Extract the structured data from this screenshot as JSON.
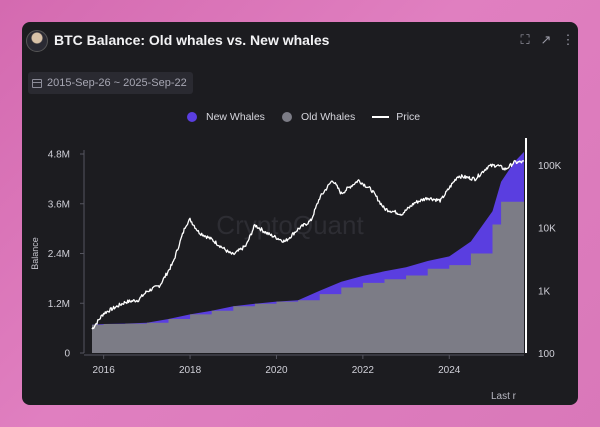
{
  "header": {
    "title": "BTC Balance: Old whales vs. New whales",
    "icons": [
      "fullscreen-icon",
      "external-link-icon",
      "more-vert-icon"
    ]
  },
  "date_range": "2015-Sep-26 ~ 2025-Sep-22",
  "watermark": "CryptoQuant",
  "footer_text": "Last r",
  "colors": {
    "new_whales": "#5a3ee0",
    "old_whales": "#7c7c86",
    "price": "#ffffff",
    "background": "#1c1c20"
  },
  "chart_data": {
    "type": "area",
    "title": "BTC Balance: Old whales vs. New whales",
    "ylabel": "Balance",
    "ylim": [
      0,
      4800000
    ],
    "y_ticks": [
      "0",
      "1.2M",
      "2.4M",
      "3.6M",
      "4.8M"
    ],
    "y2_scale": "log",
    "y2lim": [
      100,
      150000
    ],
    "y2_ticks": [
      "100",
      "1K",
      "10K",
      "100K"
    ],
    "x_ticks": [
      "2016",
      "2018",
      "2020",
      "2022",
      "2024"
    ],
    "xlim": [
      2015.73,
      2025.73
    ],
    "legend_position": "top-center",
    "grid": false,
    "series": [
      {
        "name": "Old Whales",
        "type": "area",
        "x": [
          2015.73,
          2016.0,
          2016.5,
          2017.0,
          2017.5,
          2018.0,
          2018.5,
          2019.0,
          2019.5,
          2020.0,
          2020.5,
          2021.0,
          2021.5,
          2022.0,
          2022.5,
          2023.0,
          2023.5,
          2024.0,
          2024.5,
          2025.0,
          2025.2,
          2025.5,
          2025.73
        ],
        "values": [
          680000,
          700000,
          710000,
          730000,
          820000,
          930000,
          1020000,
          1130000,
          1190000,
          1240000,
          1270000,
          1420000,
          1580000,
          1690000,
          1780000,
          1870000,
          2030000,
          2120000,
          2400000,
          3100000,
          3650000,
          3650000,
          3650000
        ]
      },
      {
        "name": "New Whales",
        "type": "stacked-area",
        "x": [
          2015.73,
          2016.0,
          2016.5,
          2017.0,
          2017.5,
          2018.0,
          2018.5,
          2019.0,
          2019.5,
          2020.0,
          2020.5,
          2021.0,
          2021.5,
          2022.0,
          2022.5,
          2023.0,
          2023.5,
          2024.0,
          2024.5,
          2025.0,
          2025.2,
          2025.5,
          2025.73
        ],
        "values": [
          0,
          0,
          0,
          0,
          0,
          0,
          0,
          0,
          0,
          0,
          0,
          80000,
          140000,
          170000,
          190000,
          200000,
          190000,
          210000,
          290000,
          320000,
          480000,
          950000,
          1200000
        ]
      },
      {
        "name": "Price",
        "type": "line",
        "axis": "right",
        "x": [
          2015.73,
          2016.0,
          2016.5,
          2016.8,
          2017.0,
          2017.3,
          2017.6,
          2017.9,
          2018.0,
          2018.2,
          2018.5,
          2018.9,
          2019.0,
          2019.3,
          2019.5,
          2019.8,
          2020.2,
          2020.5,
          2020.8,
          2021.0,
          2021.3,
          2021.5,
          2021.7,
          2021.9,
          2022.2,
          2022.5,
          2022.9,
          2023.2,
          2023.5,
          2023.8,
          2024.0,
          2024.2,
          2024.6,
          2024.9,
          2025.1,
          2025.3,
          2025.5,
          2025.73
        ],
        "values": [
          240,
          430,
          650,
          700,
          960,
          1200,
          2700,
          11000,
          13500,
          8500,
          6500,
          4000,
          3700,
          5200,
          11000,
          8000,
          6000,
          9500,
          13000,
          30000,
          58000,
          35000,
          45000,
          57000,
          40000,
          20000,
          16500,
          25000,
          30000,
          27000,
          43000,
          67000,
          60000,
          95000,
          100000,
          85000,
          110000,
          112000
        ]
      }
    ]
  }
}
